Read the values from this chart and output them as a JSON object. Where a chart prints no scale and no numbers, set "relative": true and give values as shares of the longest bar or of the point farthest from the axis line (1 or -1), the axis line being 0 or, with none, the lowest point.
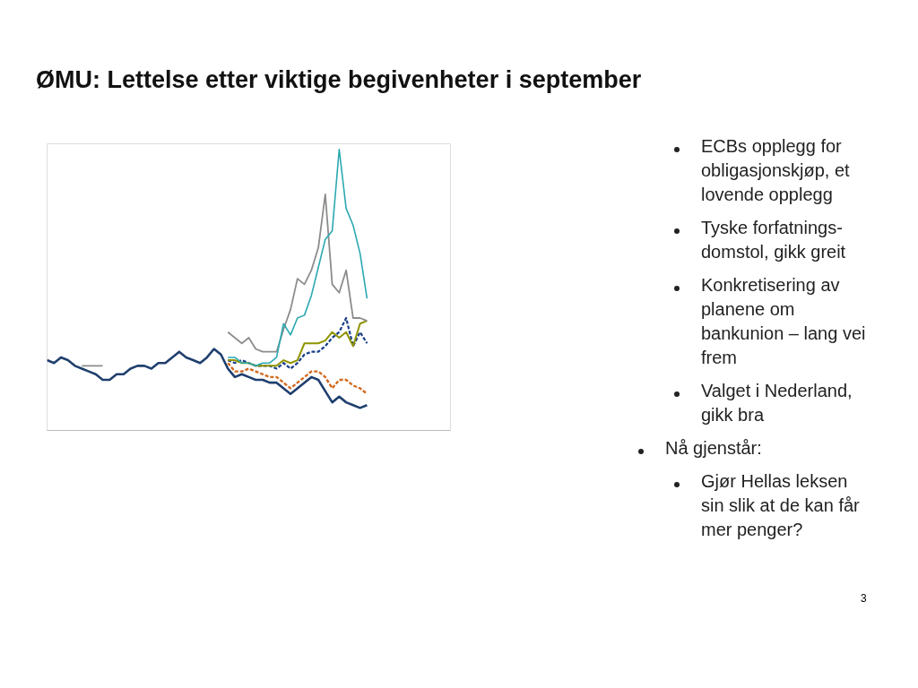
{
  "chart_data": {
    "type": "line",
    "title": "ØMU: Lettelse etter viktige begivenheter i september",
    "relative": true,
    "grid": false,
    "categories": [
      null,
      null,
      null,
      null,
      null,
      null,
      null,
      null,
      null,
      null,
      null,
      null,
      null,
      null,
      null,
      null,
      null,
      null,
      null,
      null,
      null,
      null,
      null,
      null,
      null,
      null,
      null,
      null,
      null,
      null,
      null,
      null,
      null,
      null,
      null,
      null,
      null,
      null,
      null,
      null,
      null,
      null,
      null,
      null,
      null,
      null,
      null,
      null,
      null,
      null,
      null,
      null,
      null,
      null,
      null,
      null,
      null,
      null,
      null
    ],
    "series": [
      {
        "color": "#1f3f6e",
        "line_style": "solid",
        "values": [
          0.25,
          0.24,
          0.26,
          0.25,
          0.23,
          0.22,
          0.21,
          0.2,
          0.18,
          0.18,
          0.2,
          0.2,
          0.22,
          0.23,
          0.23,
          0.22,
          0.24,
          0.24,
          0.26,
          0.28,
          0.26,
          0.25,
          0.24,
          0.26,
          0.29,
          0.27,
          0.22,
          0.19,
          0.2,
          0.19,
          0.18,
          0.18,
          0.17,
          0.17,
          0.15,
          0.13,
          0.15,
          0.17,
          0.19,
          0.18,
          0.14,
          0.1,
          0.12,
          0.1,
          0.09,
          0.08,
          0.09,
          null,
          null,
          null,
          null,
          null,
          null,
          null,
          null,
          null,
          null,
          null,
          null
        ]
      },
      {
        "color": "#d2691e",
        "line_style": "dashed",
        "values": [
          null,
          null,
          null,
          null,
          null,
          null,
          null,
          null,
          null,
          null,
          null,
          null,
          null,
          null,
          null,
          null,
          null,
          null,
          null,
          null,
          null,
          null,
          null,
          null,
          null,
          null,
          0.24,
          0.21,
          0.21,
          0.22,
          0.21,
          0.2,
          0.19,
          0.19,
          0.17,
          0.15,
          0.17,
          0.19,
          0.21,
          0.21,
          0.19,
          0.15,
          0.18,
          0.18,
          0.16,
          0.15,
          0.13,
          null,
          null,
          null,
          null,
          null,
          null,
          null,
          null,
          null,
          null,
          null,
          null
        ]
      },
      {
        "color": "#1a3f8a",
        "line_style": "dashed",
        "values": [
          null,
          null,
          null,
          null,
          null,
          null,
          null,
          null,
          null,
          null,
          null,
          null,
          null,
          null,
          null,
          null,
          null,
          null,
          null,
          null,
          null,
          null,
          null,
          null,
          null,
          null,
          0.25,
          0.24,
          0.25,
          0.24,
          0.23,
          0.23,
          0.23,
          0.22,
          0.24,
          0.22,
          0.24,
          0.27,
          0.28,
          0.28,
          0.3,
          0.33,
          0.35,
          0.4,
          0.3,
          0.35,
          0.31,
          null,
          null,
          null,
          null,
          null,
          null,
          null,
          null,
          null,
          null,
          null,
          null
        ]
      },
      {
        "color": "#8f9400",
        "line_style": "solid",
        "values": [
          null,
          null,
          null,
          null,
          null,
          null,
          null,
          null,
          null,
          null,
          null,
          null,
          null,
          null,
          null,
          null,
          null,
          null,
          null,
          null,
          null,
          null,
          null,
          null,
          null,
          null,
          0.25,
          0.25,
          0.24,
          0.24,
          0.23,
          0.23,
          0.23,
          0.23,
          0.25,
          0.24,
          0.25,
          0.31,
          0.31,
          0.31,
          0.32,
          0.35,
          0.33,
          0.35,
          0.3,
          0.38,
          0.39,
          null,
          null,
          null,
          null,
          null,
          null,
          null,
          null,
          null,
          null,
          null,
          null
        ]
      },
      {
        "color": "#8c8c8c",
        "line_style": "solid",
        "values": [
          null,
          null,
          null,
          null,
          null,
          0.23,
          0.23,
          0.23,
          0.23,
          null,
          null,
          null,
          null,
          null,
          null,
          null,
          null,
          null,
          null,
          null,
          null,
          null,
          null,
          null,
          null,
          null,
          0.35,
          0.33,
          0.31,
          0.33,
          0.29,
          0.28,
          0.28,
          0.28,
          0.36,
          0.43,
          0.54,
          0.52,
          0.57,
          0.65,
          0.84,
          0.52,
          0.49,
          0.57,
          0.4,
          0.4,
          0.39,
          null,
          null,
          null,
          null,
          null,
          null,
          null,
          null,
          null,
          null,
          null,
          null
        ]
      },
      {
        "color": "#2aa8b0",
        "line_style": "solid",
        "values": [
          null,
          null,
          null,
          null,
          null,
          null,
          null,
          null,
          null,
          null,
          null,
          null,
          null,
          null,
          null,
          null,
          null,
          null,
          null,
          null,
          null,
          null,
          null,
          null,
          null,
          null,
          0.26,
          0.26,
          0.24,
          0.24,
          0.23,
          0.24,
          0.24,
          0.26,
          0.38,
          0.34,
          0.4,
          0.41,
          0.48,
          0.58,
          0.68,
          0.71,
          1.0,
          0.79,
          0.73,
          0.63,
          0.47,
          null,
          null,
          null,
          null,
          null,
          null,
          null,
          null,
          null,
          null,
          null,
          null
        ]
      }
    ],
    "annotations": [
      "ECBs opplegg for obligasjonskjøp, et lovende opplegg",
      "Tyske forfatnings-domstol, gikk greit",
      "Konkretisering av planene om bankunion – lang vei frem",
      "Valget i Nederland, gikk bra",
      "Nå gjenstår:",
      "Gjør Hellas leksen sin slik at de kan får mer penger?",
      "3"
    ]
  }
}
